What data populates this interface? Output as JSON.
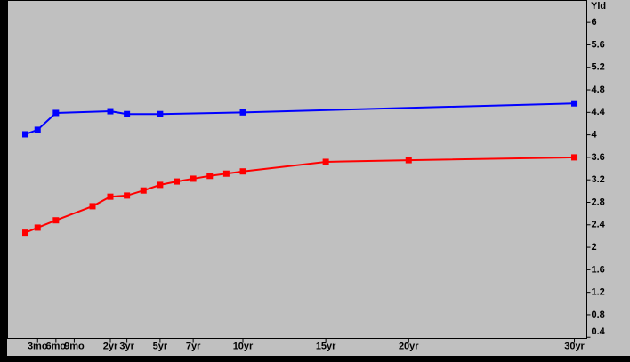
{
  "chart_data": {
    "type": "line",
    "y_axis_label": "Yld",
    "ylim": [
      0.38,
      6.39
    ],
    "yticks": [
      6,
      5.6,
      5.2,
      4.8,
      4.4,
      4,
      3.6,
      3.2,
      2.8,
      2.4,
      2,
      1.6,
      1.2,
      0.8,
      0.4
    ],
    "xlim": [
      -0.16,
      30.75
    ],
    "xticks": [
      {
        "value": 0.25,
        "label": "3mo"
      },
      {
        "value": 0.5,
        "label": "6mo"
      },
      {
        "value": 0.75,
        "label": "9mo"
      },
      {
        "value": 2,
        "label": "2yr"
      },
      {
        "value": 3,
        "label": "3yr"
      },
      {
        "value": 5,
        "label": "5yr"
      },
      {
        "value": 7,
        "label": "7yr"
      },
      {
        "value": 10,
        "label": "10yr"
      },
      {
        "value": 15,
        "label": "15yr"
      },
      {
        "value": 20,
        "label": "20yr"
      },
      {
        "value": 30,
        "label": "30yr"
      }
    ],
    "series": [
      {
        "color": "#0000ff",
        "x": [
          0.083,
          0.25,
          0.5,
          2,
          3,
          5,
          10,
          30
        ],
        "values": [
          4.01,
          4.09,
          4.39,
          4.42,
          4.37,
          4.37,
          4.4,
          4.56
        ]
      },
      {
        "color": "#ff0000",
        "x": [
          0.083,
          0.25,
          0.5,
          1,
          2,
          3,
          4,
          5,
          6,
          7,
          8,
          9,
          10,
          15,
          20,
          30
        ],
        "values": [
          2.26,
          2.35,
          2.48,
          2.73,
          2.9,
          2.92,
          3.01,
          3.11,
          3.17,
          3.22,
          3.27,
          3.31,
          3.35,
          3.52,
          3.55,
          3.6
        ]
      }
    ]
  }
}
